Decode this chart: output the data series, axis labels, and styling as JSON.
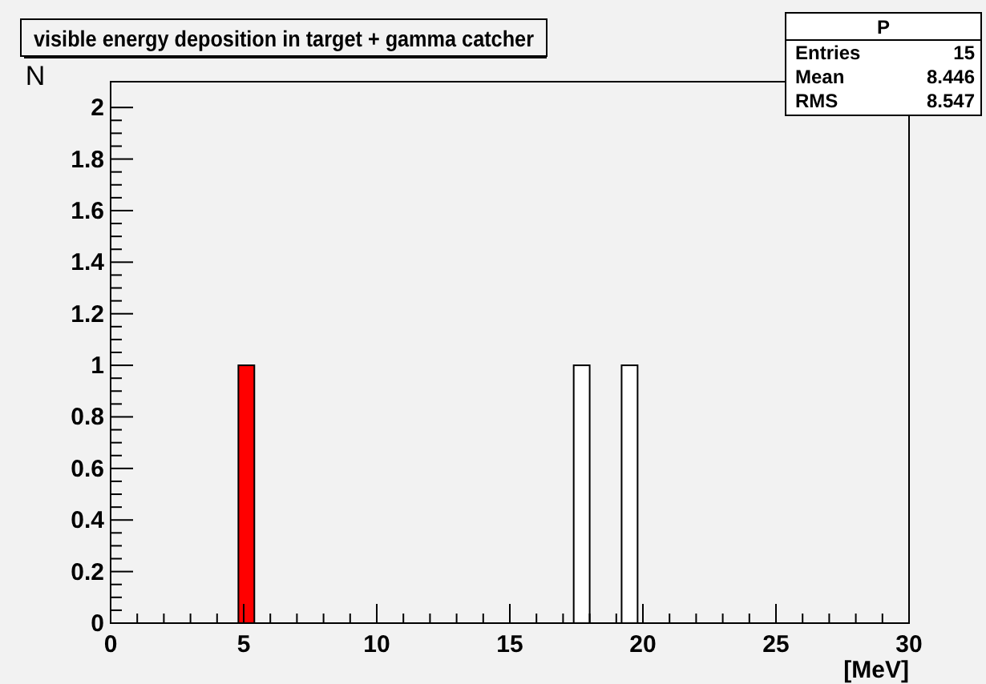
{
  "chart_data": {
    "type": "histogram",
    "title": "visible energy deposition in target + gamma catcher",
    "xlabel": "[MeV]",
    "ylabel": "N",
    "bins": [
      0,
      0.6,
      1.2,
      1.8,
      2.4,
      3,
      3.6,
      4.2,
      4.8,
      5.4,
      6,
      6.6,
      7.2,
      7.8,
      8.4,
      9,
      9.6,
      10.2,
      10.8,
      11.4,
      12,
      12.6,
      13.2,
      13.8,
      14.4,
      15,
      15.6,
      16.2,
      16.8,
      17.4,
      18,
      18.6,
      19.2,
      19.8,
      20.4,
      21,
      21.6,
      22.2,
      22.8,
      23.4,
      24,
      24.6,
      25.2,
      25.8,
      26.4,
      27,
      27.6,
      28.2,
      28.8,
      29.4,
      30
    ],
    "series": [
      {
        "color": "#ff0000",
        "values": [
          0,
          0,
          0,
          0,
          0,
          0,
          0,
          0,
          1,
          0,
          0,
          0,
          0,
          0,
          0,
          0,
          0,
          0,
          0,
          0,
          0,
          0,
          0,
          0,
          0,
          0,
          0,
          0,
          0,
          0,
          0,
          0,
          0,
          0,
          0,
          0,
          0,
          0,
          0,
          0,
          0,
          0,
          0,
          0,
          0,
          0,
          0,
          0,
          0,
          0
        ]
      },
      {
        "color": "#ffffff",
        "values": [
          0,
          0,
          0,
          0,
          0,
          0,
          0,
          0,
          0,
          0,
          0,
          0,
          0,
          0,
          0,
          0,
          0,
          0,
          0,
          0,
          0,
          0,
          0,
          0,
          0,
          0,
          0,
          0,
          0,
          1,
          0,
          0,
          1,
          0,
          0,
          0,
          0,
          0,
          0,
          0,
          0,
          0,
          0,
          0,
          0,
          0,
          0,
          0,
          0,
          0
        ]
      }
    ],
    "xlim": [
      0,
      30
    ],
    "xticks": [
      0,
      5,
      10,
      15,
      20,
      25,
      30
    ],
    "ylim": [
      0,
      2.1
    ],
    "yticks": [
      0,
      0.2,
      0.4,
      0.6,
      0.8,
      1,
      1.2,
      1.4,
      1.6,
      1.8,
      2
    ],
    "annotations": [
      "P",
      "Entries",
      "15",
      "Mean",
      "8.446",
      "RMS",
      "8.547"
    ]
  }
}
